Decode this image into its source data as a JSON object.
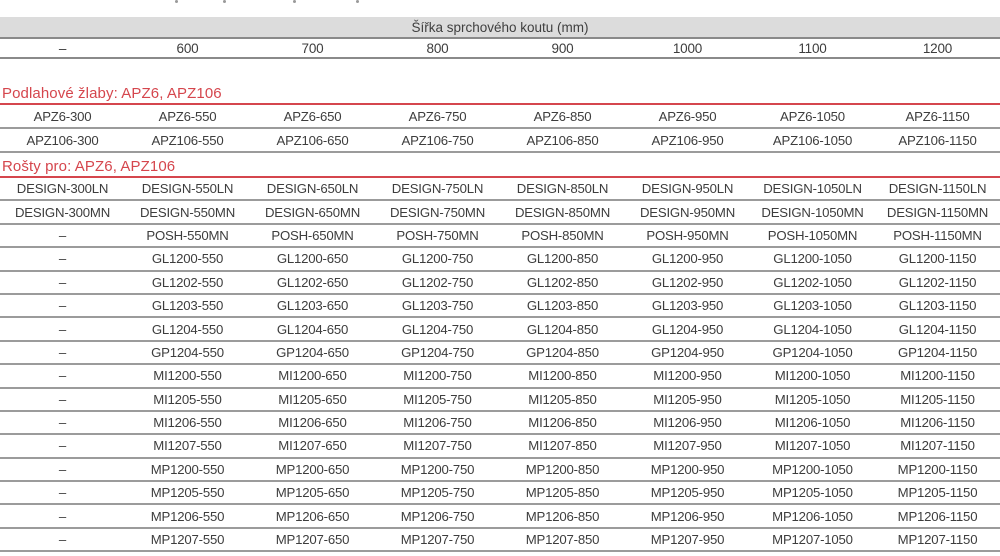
{
  "table": {
    "title": "Šířka sprchového koutu (mm)",
    "columns": [
      "–",
      "600",
      "700",
      "800",
      "900",
      "1000",
      "1100",
      "1200"
    ]
  },
  "sections": [
    {
      "id": "podlahove-zlaby",
      "heading": "Podlahové žlaby: APZ6, APZ106",
      "rows": [
        [
          "APZ6-300",
          "APZ6-550",
          "APZ6-650",
          "APZ6-750",
          "APZ6-850",
          "APZ6-950",
          "APZ6-1050",
          "APZ6-1150"
        ],
        [
          "APZ106-300",
          "APZ106-550",
          "APZ106-650",
          "APZ106-750",
          "APZ106-850",
          "APZ106-950",
          "APZ106-1050",
          "APZ106-1150"
        ]
      ]
    },
    {
      "id": "rosty-pro",
      "heading": "Rošty pro: APZ6, APZ106",
      "rows": [
        [
          "DESIGN-300LN",
          "DESIGN-550LN",
          "DESIGN-650LN",
          "DESIGN-750LN",
          "DESIGN-850LN",
          "DESIGN-950LN",
          "DESIGN-1050LN",
          "DESIGN-1150LN"
        ],
        [
          "DESIGN-300MN",
          "DESIGN-550MN",
          "DESIGN-650MN",
          "DESIGN-750MN",
          "DESIGN-850MN",
          "DESIGN-950MN",
          "DESIGN-1050MN",
          "DESIGN-1150MN"
        ],
        [
          "–",
          "POSH-550MN",
          "POSH-650MN",
          "POSH-750MN",
          "POSH-850MN",
          "POSH-950MN",
          "POSH-1050MN",
          "POSH-1150MN"
        ],
        [
          "–",
          "GL1200-550",
          "GL1200-650",
          "GL1200-750",
          "GL1200-850",
          "GL1200-950",
          "GL1200-1050",
          "GL1200-1150"
        ],
        [
          "–",
          "GL1202-550",
          "GL1202-650",
          "GL1202-750",
          "GL1202-850",
          "GL1202-950",
          "GL1202-1050",
          "GL1202-1150"
        ],
        [
          "–",
          "GL1203-550",
          "GL1203-650",
          "GL1203-750",
          "GL1203-850",
          "GL1203-950",
          "GL1203-1050",
          "GL1203-1150"
        ],
        [
          "–",
          "GL1204-550",
          "GL1204-650",
          "GL1204-750",
          "GL1204-850",
          "GL1204-950",
          "GL1204-1050",
          "GL1204-1150"
        ],
        [
          "–",
          "GP1204-550",
          "GP1204-650",
          "GP1204-750",
          "GP1204-850",
          "GP1204-950",
          "GP1204-1050",
          "GP1204-1150"
        ],
        [
          "–",
          "MI1200-550",
          "MI1200-650",
          "MI1200-750",
          "MI1200-850",
          "MI1200-950",
          "MI1200-1050",
          "MI1200-1150"
        ],
        [
          "–",
          "MI1205-550",
          "MI1205-650",
          "MI1205-750",
          "MI1205-850",
          "MI1205-950",
          "MI1205-1050",
          "MI1205-1150"
        ],
        [
          "–",
          "MI1206-550",
          "MI1206-650",
          "MI1206-750",
          "MI1206-850",
          "MI1206-950",
          "MI1206-1050",
          "MI1206-1150"
        ],
        [
          "–",
          "MI1207-550",
          "MI1207-650",
          "MI1207-750",
          "MI1207-850",
          "MI1207-950",
          "MI1207-1050",
          "MI1207-1150"
        ],
        [
          "–",
          "MP1200-550",
          "MP1200-650",
          "MP1200-750",
          "MP1200-850",
          "MP1200-950",
          "MP1200-1050",
          "MP1200-1150"
        ],
        [
          "–",
          "MP1205-550",
          "MP1205-650",
          "MP1205-750",
          "MP1205-850",
          "MP1205-950",
          "MP1205-1050",
          "MP1205-1150"
        ],
        [
          "–",
          "MP1206-550",
          "MP1206-650",
          "MP1206-750",
          "MP1206-850",
          "MP1206-950",
          "MP1206-1050",
          "MP1206-1150"
        ],
        [
          "–",
          "MP1207-550",
          "MP1207-650",
          "MP1207-750",
          "MP1207-850",
          "MP1207-950",
          "MP1207-1050",
          "MP1207-1150"
        ]
      ]
    }
  ],
  "colors": {
    "accent_red": "#d5464d",
    "header_band_bg": "#dcdcdc",
    "border_dark": "#8a8a8a",
    "border_light": "#9b9b9b",
    "text": "#3d3d3d"
  }
}
